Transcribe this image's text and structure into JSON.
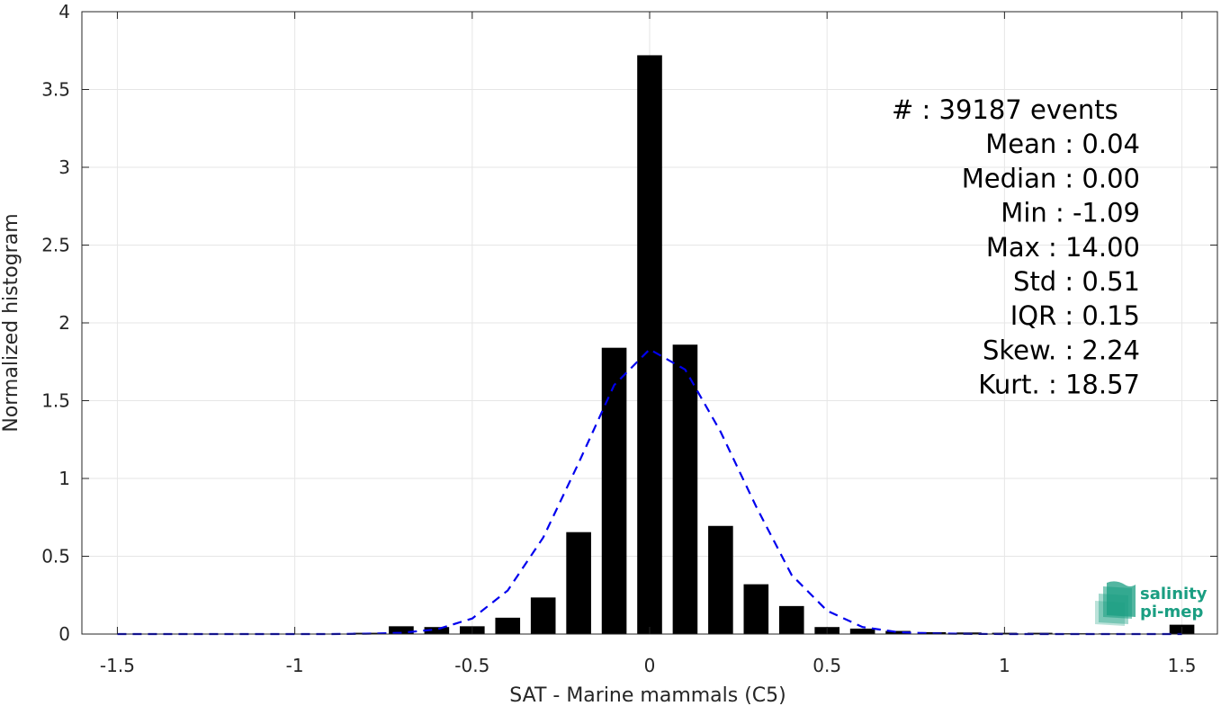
{
  "chart_data": {
    "type": "bar",
    "xlabel": "SAT - Marine mammals (C5)",
    "ylabel": "Normalized histogram",
    "xlim": [
      -1.6,
      1.6
    ],
    "ylim": [
      0,
      4
    ],
    "grid": true,
    "x_ticks": [
      "-1.5",
      "-1",
      "-0.5",
      "0",
      "0.5",
      "1",
      "1.5"
    ],
    "x_tick_values": [
      -1.5,
      -1,
      -0.5,
      0,
      0.5,
      1,
      1.5
    ],
    "y_ticks": [
      "0",
      "0.5",
      "1",
      "1.5",
      "2",
      "2.5",
      "3",
      "3.5",
      "4"
    ],
    "y_tick_values": [
      0,
      0.5,
      1,
      1.5,
      2,
      2.5,
      3,
      3.5,
      4
    ],
    "bar_width": 0.07,
    "bars": {
      "x": [
        -1.5,
        -1.4,
        -1.3,
        -1.2,
        -1.1,
        -1.0,
        -0.9,
        -0.8,
        -0.7,
        -0.6,
        -0.5,
        -0.4,
        -0.3,
        -0.2,
        -0.1,
        0.0,
        0.1,
        0.2,
        0.3,
        0.4,
        0.5,
        0.6,
        0.7,
        0.8,
        0.9,
        1.0,
        1.1,
        1.2,
        1.3,
        1.4,
        1.5
      ],
      "values": [
        0,
        0,
        0,
        0,
        0,
        0,
        0.001,
        0.008,
        0.05,
        0.045,
        0.05,
        0.105,
        0.235,
        0.655,
        1.84,
        3.72,
        1.86,
        0.695,
        0.32,
        0.18,
        0.045,
        0.035,
        0.02,
        0.012,
        0.01,
        0.008,
        0.008,
        0.005,
        0.004,
        0.003,
        0.06
      ],
      "color": "#000000"
    },
    "fit_curve": {
      "style": "dashed",
      "color": "#0000ee",
      "x": [
        -1.5,
        -1.4,
        -1.3,
        -1.2,
        -1.1,
        -1.0,
        -0.9,
        -0.8,
        -0.7,
        -0.6,
        -0.5,
        -0.4,
        -0.3,
        -0.2,
        -0.1,
        0.0,
        0.1,
        0.2,
        0.3,
        0.4,
        0.5,
        0.6,
        0.7,
        0.8,
        0.9,
        1.0,
        1.1,
        1.2,
        1.3,
        1.4,
        1.5
      ],
      "y": [
        0,
        0,
        0,
        0,
        0,
        0,
        0,
        0.002,
        0.008,
        0.03,
        0.1,
        0.28,
        0.62,
        1.1,
        1.6,
        1.83,
        1.7,
        1.3,
        0.82,
        0.38,
        0.15,
        0.045,
        0.012,
        0.004,
        0.001,
        0,
        0,
        0,
        0,
        0,
        0
      ]
    },
    "stats": [
      {
        "label": "#  : 39187 events",
        "anchor": "start"
      },
      {
        "label": "Mean : 0.04",
        "anchor": "end"
      },
      {
        "label": "Median : 0.00",
        "anchor": "end"
      },
      {
        "label": "Min : -1.09",
        "anchor": "end"
      },
      {
        "label": "Max : 14.00",
        "anchor": "end"
      },
      {
        "label": "Std : 0.51",
        "anchor": "end"
      },
      {
        "label": "IQR : 0.15",
        "anchor": "end"
      },
      {
        "label": "Skew. : 2.24",
        "anchor": "end"
      },
      {
        "label": "Kurt. : 18.57",
        "anchor": "end"
      }
    ]
  },
  "logo": {
    "line1": "salinity",
    "line2": "pi-mep",
    "color": "#1a9e82"
  }
}
